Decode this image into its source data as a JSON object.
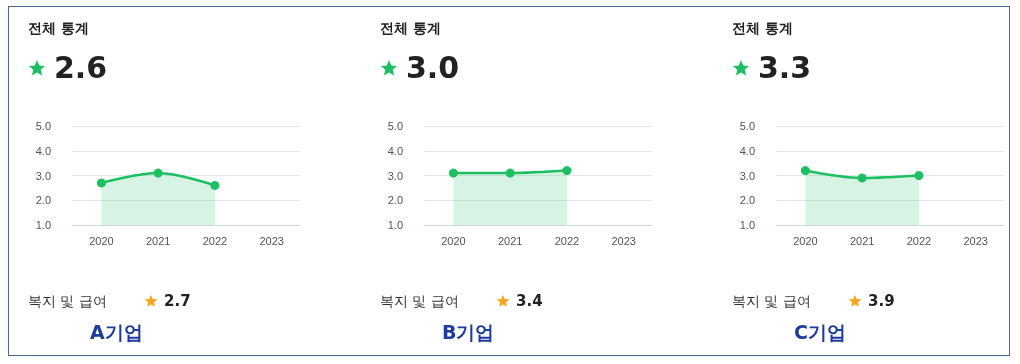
{
  "chart_data": [
    {
      "type": "area",
      "title": "전체 통계",
      "subtitle": "2.6",
      "categories": [
        "2020",
        "2021",
        "2022",
        "2023"
      ],
      "series": [
        {
          "color": "#1dbf62",
          "values": [
            2.7,
            3.1,
            2.6,
            null
          ]
        }
      ],
      "ylim": [
        1,
        5
      ],
      "yticks": [
        {
          "value": 1,
          "label": "1.0"
        },
        {
          "value": 2,
          "label": "2.0"
        },
        {
          "value": 3,
          "label": "3.0"
        },
        {
          "value": 4,
          "label": "4.0"
        },
        {
          "value": 5,
          "label": "5.0"
        }
      ],
      "grid": "y",
      "marker": "circle",
      "annotations": [
        "복지 및 급여",
        "2.7",
        "A기업"
      ]
    },
    {
      "type": "area",
      "title": "전체 통계",
      "subtitle": "3.0",
      "categories": [
        "2020",
        "2021",
        "2022",
        "2023"
      ],
      "series": [
        {
          "color": "#1dbf62",
          "values": [
            3.1,
            3.1,
            3.2,
            null
          ]
        }
      ],
      "ylim": [
        1,
        5
      ],
      "yticks": [
        {
          "value": 1,
          "label": "1.0"
        },
        {
          "value": 2,
          "label": "2.0"
        },
        {
          "value": 3,
          "label": "3.0"
        },
        {
          "value": 4,
          "label": "4.0"
        },
        {
          "value": 5,
          "label": "5.0"
        }
      ],
      "grid": "y",
      "marker": "circle",
      "annotations": [
        "복지 및 급여",
        "3.4",
        "B기업"
      ]
    },
    {
      "type": "area",
      "title": "전체 통계",
      "subtitle": "3.3",
      "categories": [
        "2020",
        "2021",
        "2022",
        "2023"
      ],
      "series": [
        {
          "color": "#1dbf62",
          "values": [
            3.2,
            2.9,
            3.0,
            null
          ]
        }
      ],
      "ylim": [
        1,
        5
      ],
      "yticks": [
        {
          "value": 1,
          "label": "1.0"
        },
        {
          "value": 2,
          "label": "2.0"
        },
        {
          "value": 3,
          "label": "3.0"
        },
        {
          "value": 4,
          "label": "4.0"
        },
        {
          "value": 5,
          "label": "5.0"
        }
      ],
      "grid": "y",
      "marker": "circle",
      "annotations": [
        "복지 및 급여",
        "3.9",
        "C기업"
      ]
    }
  ]
}
